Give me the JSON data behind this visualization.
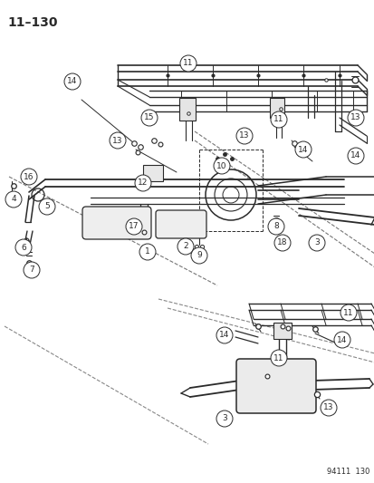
{
  "page_number": "11–130",
  "doc_number": "94111  130",
  "background_color": "#ffffff",
  "line_color": "#2a2a2a",
  "figsize": [
    4.14,
    5.33
  ],
  "dpi": 100,
  "title_fontsize": 10,
  "callout_fontsize": 6.5,
  "doc_fontsize": 6
}
